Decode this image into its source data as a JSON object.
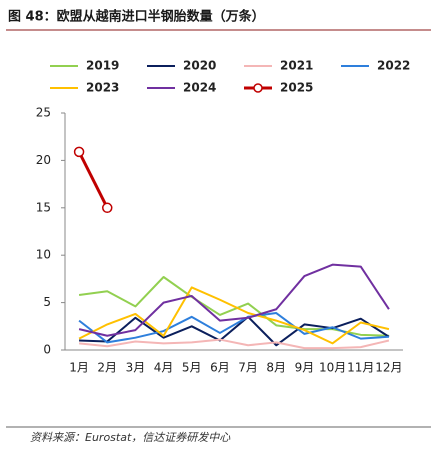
{
  "chart_data": {
    "type": "line",
    "title": "图 48：欧盟从越南进口半钢胎数量（万条）",
    "source": "资料来源：Eurostat，信达证券研发中心",
    "categories": [
      "1月",
      "2月",
      "3月",
      "4月",
      "5月",
      "6月",
      "7月",
      "8月",
      "9月",
      "10月",
      "11月",
      "12月"
    ],
    "series": [
      {
        "name": "2019",
        "color": "#92d050",
        "values": [
          5.8,
          6.2,
          4.6,
          7.7,
          5.6,
          3.7,
          4.9,
          2.6,
          2.2,
          2.2,
          1.6,
          1.5
        ]
      },
      {
        "name": "2020",
        "color": "#0b1f5c",
        "values": [
          1.0,
          0.9,
          3.4,
          1.3,
          2.5,
          1.0,
          3.5,
          0.5,
          2.7,
          2.3,
          3.3,
          1.4
        ]
      },
      {
        "name": "2021",
        "color": "#f4b6b6",
        "values": [
          0.7,
          0.4,
          0.9,
          0.7,
          0.8,
          1.1,
          0.5,
          0.8,
          0.2,
          0.2,
          0.3,
          1.0
        ]
      },
      {
        "name": "2022",
        "color": "#2e7fdc",
        "values": [
          3.1,
          0.8,
          1.3,
          2.0,
          3.5,
          1.8,
          3.5,
          3.9,
          1.7,
          2.4,
          1.2,
          1.4
        ]
      },
      {
        "name": "2023",
        "color": "#ffc000",
        "values": [
          1.2,
          2.7,
          3.8,
          1.5,
          6.6,
          5.3,
          3.9,
          3.1,
          2.1,
          0.7,
          2.9,
          2.2
        ]
      },
      {
        "name": "2024",
        "color": "#7030a0",
        "values": [
          2.2,
          1.5,
          2.1,
          5.0,
          5.7,
          3.1,
          3.4,
          4.3,
          7.8,
          9.0,
          8.8,
          4.3
        ]
      },
      {
        "name": "2025",
        "color": "#c00000",
        "marker": "circle",
        "values": [
          20.9,
          15.0,
          null,
          null,
          null,
          null,
          null,
          null,
          null,
          null,
          null,
          null
        ]
      }
    ],
    "ylim": [
      0,
      25
    ],
    "yticks": [
      0,
      5,
      10,
      15,
      20,
      25
    ]
  }
}
